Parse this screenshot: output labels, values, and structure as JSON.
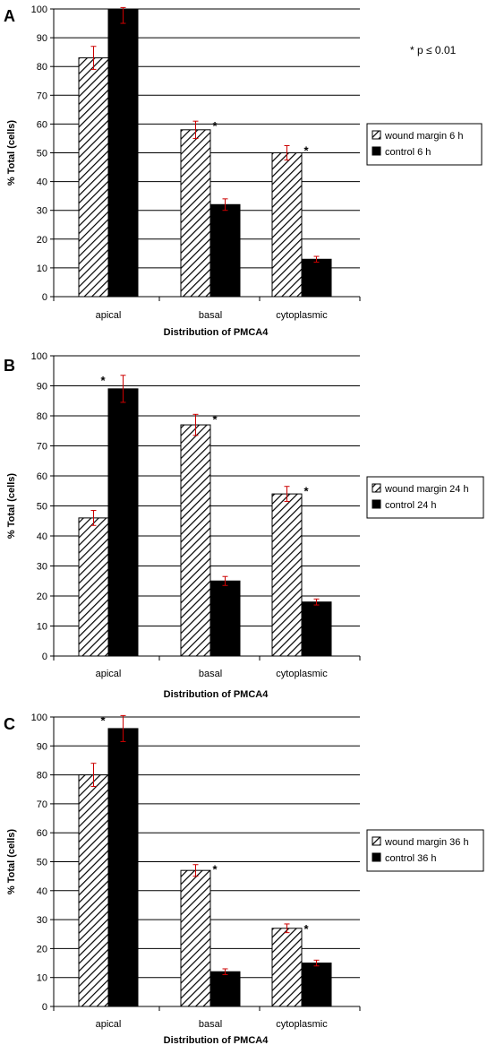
{
  "note": "* p ≤ 0.01",
  "star_symbol": "*",
  "colors": {
    "control": "#000000",
    "error_bar": "#cc0000",
    "grid": "#000000"
  },
  "chart_data": [
    {
      "type": "bar",
      "panel": "A",
      "categories": [
        "apical",
        "basal",
        "cytoplasmic"
      ],
      "series": [
        {
          "name": "wound margin 6 h",
          "pattern": "hatched",
          "values": [
            83,
            58,
            50
          ],
          "errors": [
            4,
            3,
            2.5
          ]
        },
        {
          "name": "control 6 h",
          "pattern": "solid",
          "values": [
            100,
            32,
            13
          ],
          "errors": [
            5,
            2,
            1
          ]
        }
      ],
      "significance": [
        {
          "category": 0,
          "series": 1
        },
        {
          "category": 1,
          "series": 0
        },
        {
          "category": 2,
          "series": 0
        }
      ],
      "xlabel": "Distribution of PMCA4",
      "ylabel": "% Total (cells)",
      "ylim": [
        0,
        100
      ],
      "yticks": [
        0,
        10,
        20,
        30,
        40,
        50,
        60,
        70,
        80,
        90,
        100
      ],
      "grid": true,
      "legend_position": "right"
    },
    {
      "type": "bar",
      "panel": "B",
      "categories": [
        "apical",
        "basal",
        "cytoplasmic"
      ],
      "series": [
        {
          "name": "wound margin 24 h",
          "pattern": "hatched",
          "values": [
            46,
            77,
            54
          ],
          "errors": [
            2.5,
            3.5,
            2.5
          ]
        },
        {
          "name": "control 24 h",
          "pattern": "solid",
          "values": [
            89,
            25,
            18
          ],
          "errors": [
            4.5,
            1.5,
            1
          ]
        }
      ],
      "significance": [
        {
          "category": 0,
          "series": 1
        },
        {
          "category": 1,
          "series": 0
        },
        {
          "category": 2,
          "series": 0
        }
      ],
      "xlabel": "Distribution of PMCA4",
      "ylabel": "% Total (cells)",
      "ylim": [
        0,
        100
      ],
      "yticks": [
        0,
        10,
        20,
        30,
        40,
        50,
        60,
        70,
        80,
        90,
        100
      ],
      "grid": true,
      "legend_position": "right"
    },
    {
      "type": "bar",
      "panel": "C",
      "categories": [
        "apical",
        "basal",
        "cytoplasmic"
      ],
      "series": [
        {
          "name": "wound margin 36 h",
          "pattern": "hatched",
          "values": [
            80,
            47,
            27
          ],
          "errors": [
            4,
            2,
            1.5
          ]
        },
        {
          "name": "control 36 h",
          "pattern": "solid",
          "values": [
            96,
            12,
            15
          ],
          "errors": [
            4.5,
            1,
            1
          ]
        }
      ],
      "significance": [
        {
          "category": 0,
          "series": 1
        },
        {
          "category": 1,
          "series": 0
        },
        {
          "category": 2,
          "series": 0
        }
      ],
      "xlabel": "Distribution of PMCA4",
      "ylabel": "% Total (cells)",
      "ylim": [
        0,
        100
      ],
      "yticks": [
        0,
        10,
        20,
        30,
        40,
        50,
        60,
        70,
        80,
        90,
        100
      ],
      "grid": true,
      "legend_position": "right"
    }
  ]
}
